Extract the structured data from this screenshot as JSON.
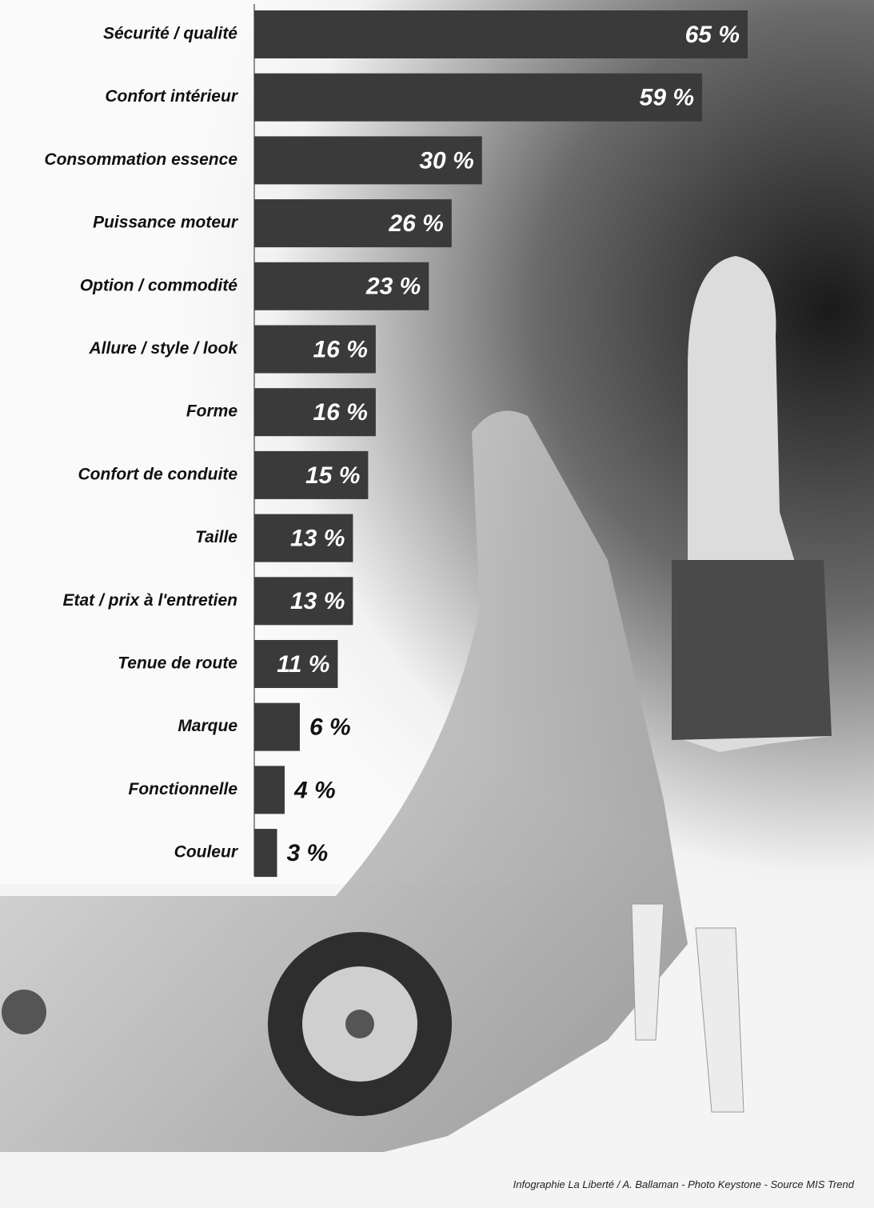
{
  "chart_data": {
    "type": "hbar",
    "categories": [
      "Sécurité / qualité",
      "Confort intérieur",
      "Consommation essence",
      "Puissance moteur",
      "Option / commodité",
      "Allure / style / look",
      "Forme",
      "Confort de conduite",
      "Taille",
      "Etat / prix à l'entretien",
      "Tenue de route",
      "Marque",
      "Fonctionnelle",
      "Couleur"
    ],
    "values": [
      65,
      59,
      30,
      26,
      23,
      16,
      16,
      15,
      13,
      13,
      11,
      6,
      4,
      3
    ],
    "value_labels": [
      "65 %",
      "59 %",
      "30 %",
      "26 %",
      "23 %",
      "16 %",
      "16 %",
      "15 %",
      "13 %",
      "13 %",
      "11 %",
      "6 %",
      "4 %",
      "3 %"
    ],
    "color": "#3a3a3a",
    "source": "Infographie La Liberté / A. Ballaman - Photo Keystone - Source MIS Trend"
  }
}
